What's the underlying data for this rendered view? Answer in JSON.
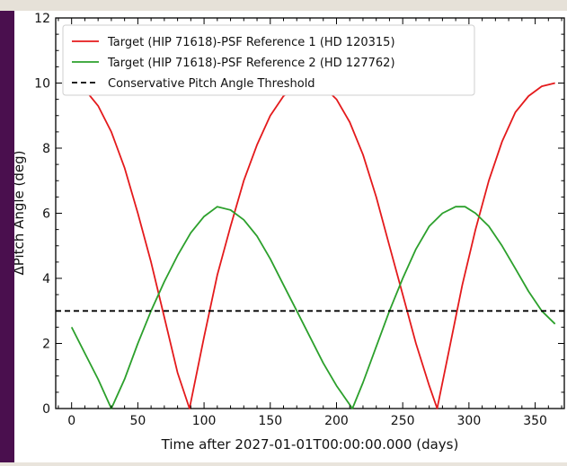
{
  "chart_data": {
    "type": "line",
    "title": "",
    "xlabel": "Time after 2027-01-01T00:00:00.000 (days)",
    "ylabel": "ΔPitch Angle (deg)",
    "xlim": [
      -12,
      372
    ],
    "ylim": [
      0,
      12
    ],
    "xticks": [
      0,
      50,
      100,
      150,
      200,
      250,
      300,
      350
    ],
    "yticks": [
      0,
      2,
      4,
      6,
      8,
      10,
      12
    ],
    "grid": false,
    "legend_position": "top-left",
    "series": [
      {
        "name": "Target (HIP 71618)-PSF Reference 1 (HD 120315)",
        "color": "#e41a1c",
        "style": "solid",
        "x": [
          0,
          10,
          20,
          30,
          40,
          50,
          60,
          70,
          80,
          89,
          100,
          110,
          120,
          130,
          140,
          150,
          160,
          170,
          182,
          190,
          200,
          210,
          220,
          230,
          240,
          250,
          260,
          270,
          276,
          285,
          295,
          305,
          315,
          325,
          335,
          345,
          355,
          365
        ],
        "y": [
          10.0,
          9.8,
          9.3,
          8.5,
          7.4,
          6.0,
          4.5,
          2.8,
          1.1,
          0.0,
          2.2,
          4.1,
          5.6,
          7.0,
          8.1,
          9.0,
          9.6,
          9.9,
          10.0,
          9.9,
          9.5,
          8.8,
          7.8,
          6.5,
          5.0,
          3.5,
          2.0,
          0.7,
          0.0,
          1.8,
          3.8,
          5.5,
          7.0,
          8.2,
          9.1,
          9.6,
          9.9,
          10.0
        ]
      },
      {
        "name": "Target (HIP 71618)-PSF Reference 2 (HD 127762)",
        "color": "#2ca02c",
        "style": "solid",
        "x": [
          0,
          10,
          20,
          30,
          40,
          50,
          60,
          70,
          80,
          90,
          100,
          110,
          120,
          130,
          140,
          150,
          160,
          170,
          180,
          190,
          200,
          212,
          220,
          230,
          240,
          250,
          260,
          270,
          280,
          290,
          297,
          305,
          315,
          325,
          335,
          345,
          355,
          365
        ],
        "y": [
          2.5,
          1.7,
          0.9,
          0.0,
          0.9,
          2.0,
          3.0,
          3.9,
          4.7,
          5.4,
          5.9,
          6.2,
          6.1,
          5.8,
          5.3,
          4.6,
          3.8,
          3.0,
          2.2,
          1.4,
          0.7,
          0.0,
          0.8,
          1.9,
          3.0,
          4.0,
          4.9,
          5.6,
          6.0,
          6.2,
          6.2,
          6.0,
          5.6,
          5.0,
          4.3,
          3.6,
          3.0,
          2.6
        ]
      },
      {
        "name": "Conservative Pitch Angle Threshold",
        "color": "#000000",
        "style": "dashed",
        "x": [
          -12,
          372
        ],
        "y": [
          3,
          3
        ]
      }
    ]
  }
}
